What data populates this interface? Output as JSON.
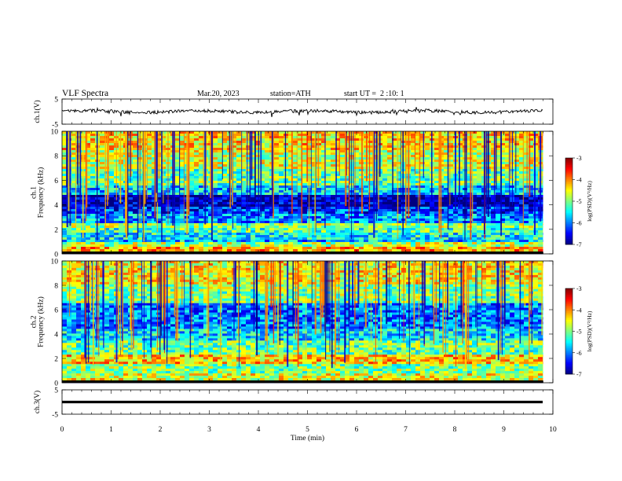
{
  "header": {
    "title": "VLF Spectra",
    "date": "Mar.20, 2023",
    "station": "station=ATH",
    "start": "start UT =  2 :10: 1"
  },
  "chart_data": [
    {
      "type": "line",
      "panel": "ch1-timeseries",
      "ylabel": "ch.1(V)",
      "ylim": [
        -5,
        5
      ],
      "yticks": [
        "5",
        "-5"
      ],
      "xlim": [
        0,
        10
      ],
      "trace_level_V": 0.0,
      "trace_extent_min": 9.8,
      "color": "#000000"
    },
    {
      "type": "heatmap",
      "panel": "ch1-spectrogram",
      "ylabel": "ch.1\nFrequency (kHz)",
      "ylabel_top": "ch.1",
      "ylabel_bottom": "Frequency (kHz)",
      "ylim": [
        0,
        10
      ],
      "yticks": [
        "0",
        "2",
        "4",
        "6",
        "8",
        "10"
      ],
      "xlim": [
        0,
        10
      ],
      "colorbar": {
        "label": "log(PSD)(V²/Hz)",
        "range": [
          -7,
          -3
        ],
        "ticks": [
          "-3",
          "-4",
          "-5",
          "-6",
          "-7"
        ]
      },
      "bands_kHz": [
        {
          "from": 0.0,
          "to": 0.2,
          "level": -7.0
        },
        {
          "from": 0.2,
          "to": 0.5,
          "level": -4.2
        },
        {
          "from": 0.5,
          "to": 0.9,
          "level": -4.8
        },
        {
          "from": 0.9,
          "to": 1.2,
          "level": -5.8
        },
        {
          "from": 1.2,
          "to": 1.8,
          "level": -5.5
        },
        {
          "from": 1.8,
          "to": 2.2,
          "level": -5.2
        },
        {
          "from": 2.2,
          "to": 2.5,
          "level": -4.9
        },
        {
          "from": 2.5,
          "to": 3.2,
          "level": -5.9
        },
        {
          "from": 3.2,
          "to": 3.8,
          "level": -6.3
        },
        {
          "from": 3.8,
          "to": 4.8,
          "level": -6.8
        },
        {
          "from": 4.8,
          "to": 5.5,
          "level": -5.7
        },
        {
          "from": 5.5,
          "to": 7.0,
          "level": -5.1
        },
        {
          "from": 7.0,
          "to": 8.5,
          "level": -4.7
        },
        {
          "from": 8.5,
          "to": 10.0,
          "level": -4.4
        }
      ]
    },
    {
      "type": "heatmap",
      "panel": "ch2-spectrogram",
      "ylabel": "ch.2\nFrequency (kHz)",
      "ylabel_top": "ch.2",
      "ylabel_bottom": "Frequency (kHz)",
      "ylim": [
        0,
        10
      ],
      "yticks": [
        "0",
        "2",
        "4",
        "6",
        "8",
        "10"
      ],
      "xlim": [
        0,
        10
      ],
      "colorbar": {
        "label": "log(PSD)(V²/Hz)",
        "range": [
          -7,
          -3
        ],
        "ticks": [
          "-3",
          "-4",
          "-5",
          "-6",
          "-7"
        ]
      },
      "bands_kHz": [
        {
          "from": 0.0,
          "to": 0.2,
          "level": -7.0
        },
        {
          "from": 0.2,
          "to": 0.8,
          "level": -4.6
        },
        {
          "from": 0.8,
          "to": 1.5,
          "level": -5.0
        },
        {
          "from": 1.5,
          "to": 2.3,
          "level": -4.3
        },
        {
          "from": 2.3,
          "to": 3.5,
          "level": -5.1
        },
        {
          "from": 3.5,
          "to": 4.5,
          "level": -5.6
        },
        {
          "from": 4.5,
          "to": 6.5,
          "level": -6.0
        },
        {
          "from": 6.5,
          "to": 8.0,
          "level": -5.0
        },
        {
          "from": 8.0,
          "to": 10.0,
          "level": -4.5
        }
      ]
    },
    {
      "type": "line",
      "panel": "ch3-timeseries",
      "ylabel": "ch.3(V)",
      "ylim": [
        -5,
        5
      ],
      "yticks": [
        "5",
        "-5"
      ],
      "xlim": [
        0,
        10
      ],
      "trace_level_V": 0.0,
      "trace_extent_min": 9.8,
      "xlabel": "Time (min)",
      "xticks": [
        "0",
        "1",
        "2",
        "3",
        "4",
        "5",
        "6",
        "7",
        "8",
        "9",
        "10"
      ],
      "color": "#000000"
    }
  ]
}
